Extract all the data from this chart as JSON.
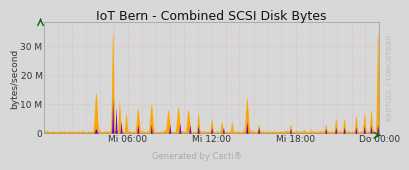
{
  "title": "IoT Bern - Combined SCSI Disk Bytes",
  "ylabel": "bytes/second",
  "watermark": "RRDTOOL / TOBIOETIKER",
  "caption": "Generated by Cacti®",
  "background_color": "#d8d8d8",
  "plot_background_color": "#d8d8d8",
  "yticks": [
    0,
    10000000,
    20000000,
    30000000
  ],
  "ytick_labels": [
    "0",
    "10 M",
    "20 M",
    "30 M"
  ],
  "ylim": [
    0,
    38000000
  ],
  "x_labels": [
    "Mi 06:00",
    "Mi 12:00",
    "Mi 18:00",
    "Do 00:00"
  ],
  "color_orange": "#FFA500",
  "color_purple": "#6600CC",
  "title_fontsize": 9,
  "axis_fontsize": 6.5,
  "caption_fontsize": 6,
  "watermark_fontsize": 5
}
